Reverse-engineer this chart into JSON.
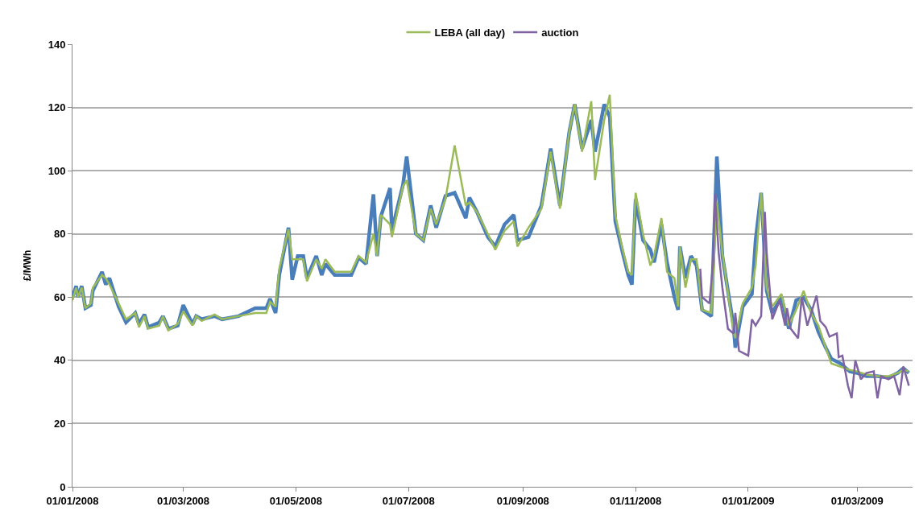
{
  "chart_data": {
    "type": "line",
    "ylabel": "£/MWh",
    "x": [
      "2008-01-01",
      "2008-01-03",
      "2008-01-04",
      "2008-01-06",
      "2008-01-08",
      "2008-01-11",
      "2008-01-12",
      "2008-01-17",
      "2008-01-19",
      "2008-01-21",
      "2008-01-26",
      "2008-01-30",
      "2008-02-04",
      "2008-02-06",
      "2008-02-09",
      "2008-02-11",
      "2008-02-17",
      "2008-02-19",
      "2008-02-22",
      "2008-02-27",
      "2008-03-01",
      "2008-03-06",
      "2008-03-08",
      "2008-03-11",
      "2008-03-18",
      "2008-03-22",
      "2008-03-31",
      "2008-04-09",
      "2008-04-15",
      "2008-04-17",
      "2008-04-20",
      "2008-04-22",
      "2008-04-27",
      "2008-04-29",
      "2008-05-02",
      "2008-05-05",
      "2008-05-07",
      "2008-05-12",
      "2008-05-15",
      "2008-05-17",
      "2008-05-22",
      "2008-05-31",
      "2008-06-04",
      "2008-06-08",
      "2008-06-12",
      "2008-06-14",
      "2008-06-16",
      "2008-06-21",
      "2008-06-22",
      "2008-06-28",
      "2008-06-30",
      "2008-07-05",
      "2008-07-09",
      "2008-07-13",
      "2008-07-16",
      "2008-07-21",
      "2008-07-26",
      "2008-08-01",
      "2008-08-03",
      "2008-08-07",
      "2008-08-13",
      "2008-08-17",
      "2008-08-22",
      "2008-08-27",
      "2008-08-29",
      "2008-09-04",
      "2008-09-11",
      "2008-09-16",
      "2008-09-21",
      "2008-09-26",
      "2008-09-29",
      "2008-10-03",
      "2008-10-08",
      "2008-10-10",
      "2008-10-15",
      "2008-10-18",
      "2008-10-21",
      "2008-10-25",
      "2008-10-28",
      "2008-10-30",
      "2008-11-01",
      "2008-11-05",
      "2008-11-09",
      "2008-11-11",
      "2008-11-15",
      "2008-11-18",
      "2008-11-22",
      "2008-11-24",
      "2008-11-25",
      "2008-11-28",
      "2008-12-01",
      "2008-12-04",
      "2008-12-07",
      "2008-12-12",
      "2008-12-15",
      "2008-12-18",
      "2008-12-24",
      "2008-12-25",
      "2008-12-29",
      "2009-01-03",
      "2009-01-05",
      "2009-01-08",
      "2009-01-11",
      "2009-01-14",
      "2009-01-19",
      "2009-01-23",
      "2009-01-27",
      "2009-01-31",
      "2009-02-04",
      "2009-02-08",
      "2009-02-12",
      "2009-02-15",
      "2009-02-20",
      "2009-02-25",
      "2009-03-01",
      "2009-03-06",
      "2009-03-12",
      "2009-03-18",
      "2009-03-23",
      "2009-03-26",
      "2009-03-29"
    ],
    "series": [
      {
        "color": "#4a7ebb",
        "values": [
          60,
          63.5,
          60,
          63.5,
          56.5,
          57.5,
          62,
          68,
          64,
          66,
          57,
          52,
          55,
          51.5,
          54.5,
          50.5,
          52,
          54,
          50,
          51,
          57.5,
          51.5,
          54,
          53,
          54,
          53,
          54,
          56.5,
          56.5,
          59.5,
          55,
          67,
          82,
          65.5,
          73,
          73,
          66,
          73,
          67,
          70.5,
          67,
          67,
          72.5,
          70.5,
          92.5,
          73,
          85.5,
          94.5,
          81,
          95.5,
          104.5,
          80,
          78,
          89,
          82,
          92,
          93,
          85,
          91.5,
          87,
          79,
          76,
          83,
          86,
          78,
          79,
          89,
          107,
          89,
          112,
          121,
          107,
          116,
          106,
          121,
          117,
          84,
          74,
          67,
          64,
          91,
          78,
          75,
          71,
          83,
          71,
          60,
          56,
          76,
          66,
          73,
          70,
          56,
          54,
          104.5,
          73,
          51,
          44,
          57,
          61,
          78,
          93,
          62,
          55,
          60,
          50,
          59,
          60,
          56,
          49,
          44,
          40.5,
          39,
          36.5,
          36,
          35,
          35,
          34.5,
          36,
          37.5,
          36
        ]
      },
      {
        "name": "LEBA (all day)",
        "color": "#9bbb59",
        "values": [
          59,
          63,
          60,
          63,
          56.5,
          58,
          63,
          67,
          66,
          64,
          58,
          53,
          55,
          50.5,
          54,
          50,
          51,
          54,
          49.5,
          51.5,
          55.5,
          51,
          54,
          52.5,
          54.5,
          53,
          54,
          55,
          55,
          58.5,
          57,
          69,
          81.5,
          72,
          72,
          72,
          65,
          72,
          69,
          72,
          68,
          68,
          73,
          71,
          80,
          73,
          86,
          83,
          79,
          95,
          97,
          80,
          78,
          88,
          83,
          91,
          108,
          89,
          90,
          87,
          80,
          75,
          81,
          84,
          76,
          82,
          88,
          106,
          88,
          112,
          121,
          106,
          122,
          97,
          116,
          124,
          86,
          75,
          68,
          67,
          93,
          80,
          70,
          73,
          85,
          68,
          66,
          57,
          76,
          63,
          72,
          72,
          56,
          55,
          90,
          74,
          49,
          47,
          58,
          63,
          70,
          93,
          63,
          57,
          61,
          51,
          56,
          62,
          55,
          51,
          44,
          39,
          38,
          37,
          36.5,
          35.5,
          35,
          35,
          36,
          37,
          36.5
        ]
      },
      {
        "name": "auction",
        "color": "#8064a2",
        "x": [
          "2008-12-06",
          "2008-12-07",
          "2008-12-11",
          "2008-12-13",
          "2008-12-14",
          "2008-12-16",
          "2008-12-18",
          "2008-12-21",
          "2008-12-24",
          "2008-12-25",
          "2008-12-27",
          "2009-01-01",
          "2009-01-03",
          "2009-01-05",
          "2009-01-08",
          "2009-01-10",
          "2009-01-11",
          "2009-01-14",
          "2009-01-16",
          "2009-01-18",
          "2009-01-21",
          "2009-01-22",
          "2009-01-24",
          "2009-01-28",
          "2009-01-30",
          "2009-02-02",
          "2009-02-07",
          "2009-02-09",
          "2009-02-12",
          "2009-02-14",
          "2009-02-18",
          "2009-02-19",
          "2009-02-21",
          "2009-02-24",
          "2009-02-26",
          "2009-02-28",
          "2009-03-03",
          "2009-03-06",
          "2009-03-10",
          "2009-03-12",
          "2009-03-14",
          "2009-03-18",
          "2009-03-21",
          "2009-03-24",
          "2009-03-26",
          "2009-03-29"
        ],
        "values": [
          69,
          60,
          58,
          71,
          92.5,
          74,
          63,
          50,
          48.5,
          55,
          43,
          41.5,
          53,
          51,
          54,
          87,
          74,
          53,
          56,
          59,
          51,
          56.5,
          50,
          47,
          60,
          51,
          60.5,
          52.5,
          50.5,
          47.5,
          48.5,
          41,
          41.5,
          32,
          28,
          40,
          34,
          36,
          36.5,
          28,
          35,
          34,
          35,
          29,
          38,
          32
        ]
      }
    ],
    "xlim": [
      "2008-01-01",
      "2009-03-31"
    ],
    "xticks": [
      {
        "value": "2008-01-01",
        "label": "01/01/2008"
      },
      {
        "value": "2008-03-01",
        "label": "01/03/2008"
      },
      {
        "value": "2008-05-01",
        "label": "01/05/2008"
      },
      {
        "value": "2008-07-01",
        "label": "01/07/2008"
      },
      {
        "value": "2008-09-01",
        "label": "01/09/2008"
      },
      {
        "value": "2008-11-01",
        "label": "01/11/2008"
      },
      {
        "value": "2009-01-01",
        "label": "01/01/2009"
      },
      {
        "value": "2009-03-01",
        "label": "01/03/2009"
      }
    ],
    "ylim": [
      0,
      140
    ],
    "yticks": [
      0,
      20,
      40,
      60,
      80,
      100,
      120,
      140
    ],
    "grid": "y",
    "legend": "top",
    "marker": "none",
    "line_style": "solid"
  }
}
